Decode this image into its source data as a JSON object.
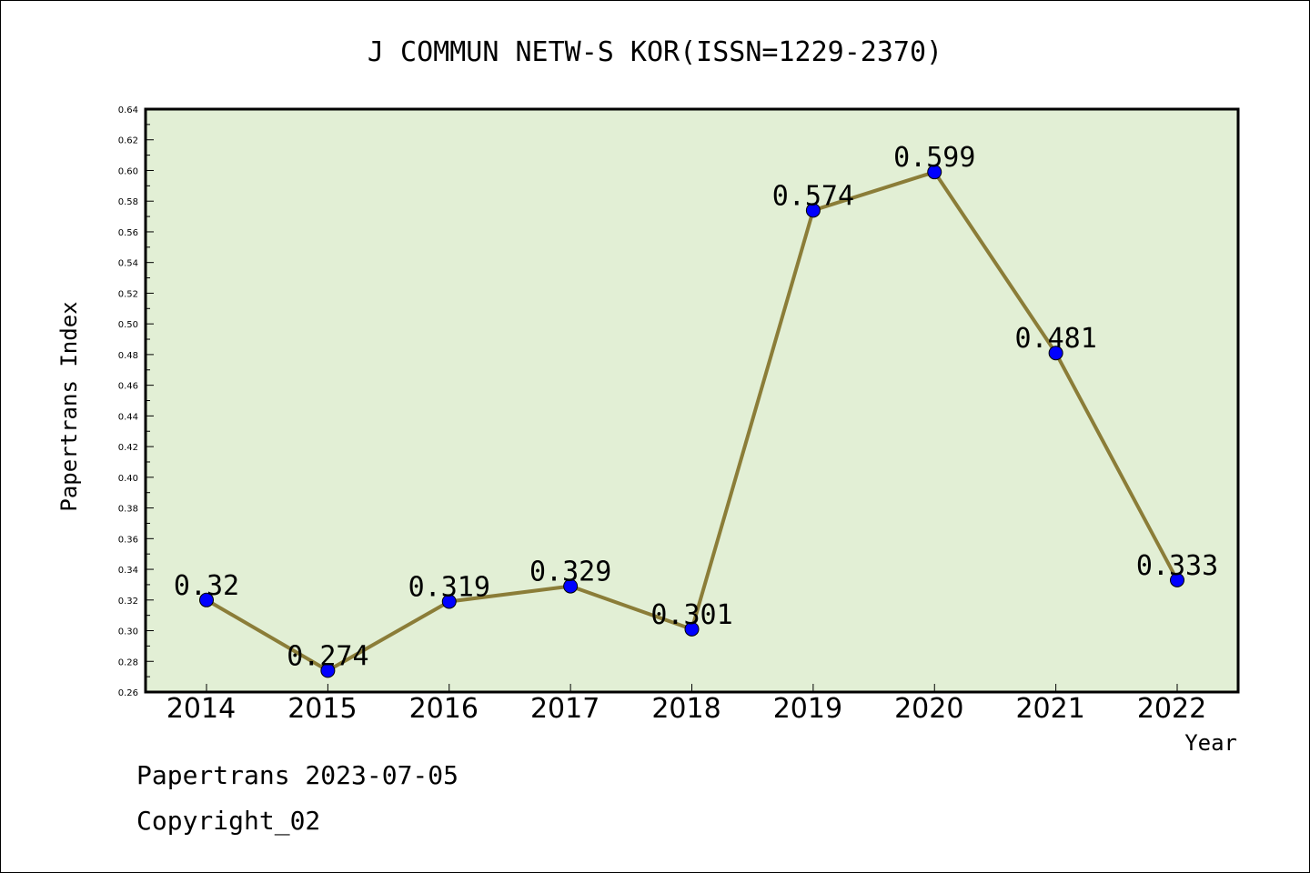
{
  "chart_data": {
    "type": "line",
    "title": "J COMMUN NETW-S KOR(ISSN=1229-2370)",
    "xlabel": "Year",
    "ylabel": "Papertrans Index",
    "categories": [
      "2014",
      "2015",
      "2016",
      "2017",
      "2018",
      "2019",
      "2020",
      "2021",
      "2022"
    ],
    "series": [
      {
        "values": [
          0.32,
          0.274,
          0.319,
          0.329,
          0.301,
          0.574,
          0.599,
          0.481,
          0.333
        ],
        "labels": [
          "0.32",
          "0.274",
          "0.319",
          "0.329",
          "0.301",
          "0.574",
          "0.599",
          "0.481",
          "0.333"
        ]
      }
    ],
    "ylim": [
      0.26,
      0.64
    ],
    "yticks": [
      "0.26",
      "0.28",
      "0.30",
      "0.32",
      "0.34",
      "0.36",
      "0.38",
      "0.40",
      "0.42",
      "0.44",
      "0.46",
      "0.48",
      "0.50",
      "0.52",
      "0.54",
      "0.56",
      "0.58",
      "0.60",
      "0.62",
      "0.64"
    ],
    "grid": false,
    "colors": {
      "plot_background": "#e2efd5",
      "line": "#8b7d38",
      "marker": "#0000ff"
    }
  },
  "footer": {
    "line1": "Papertrans 2023-07-05",
    "line2": "Copyright_02"
  }
}
